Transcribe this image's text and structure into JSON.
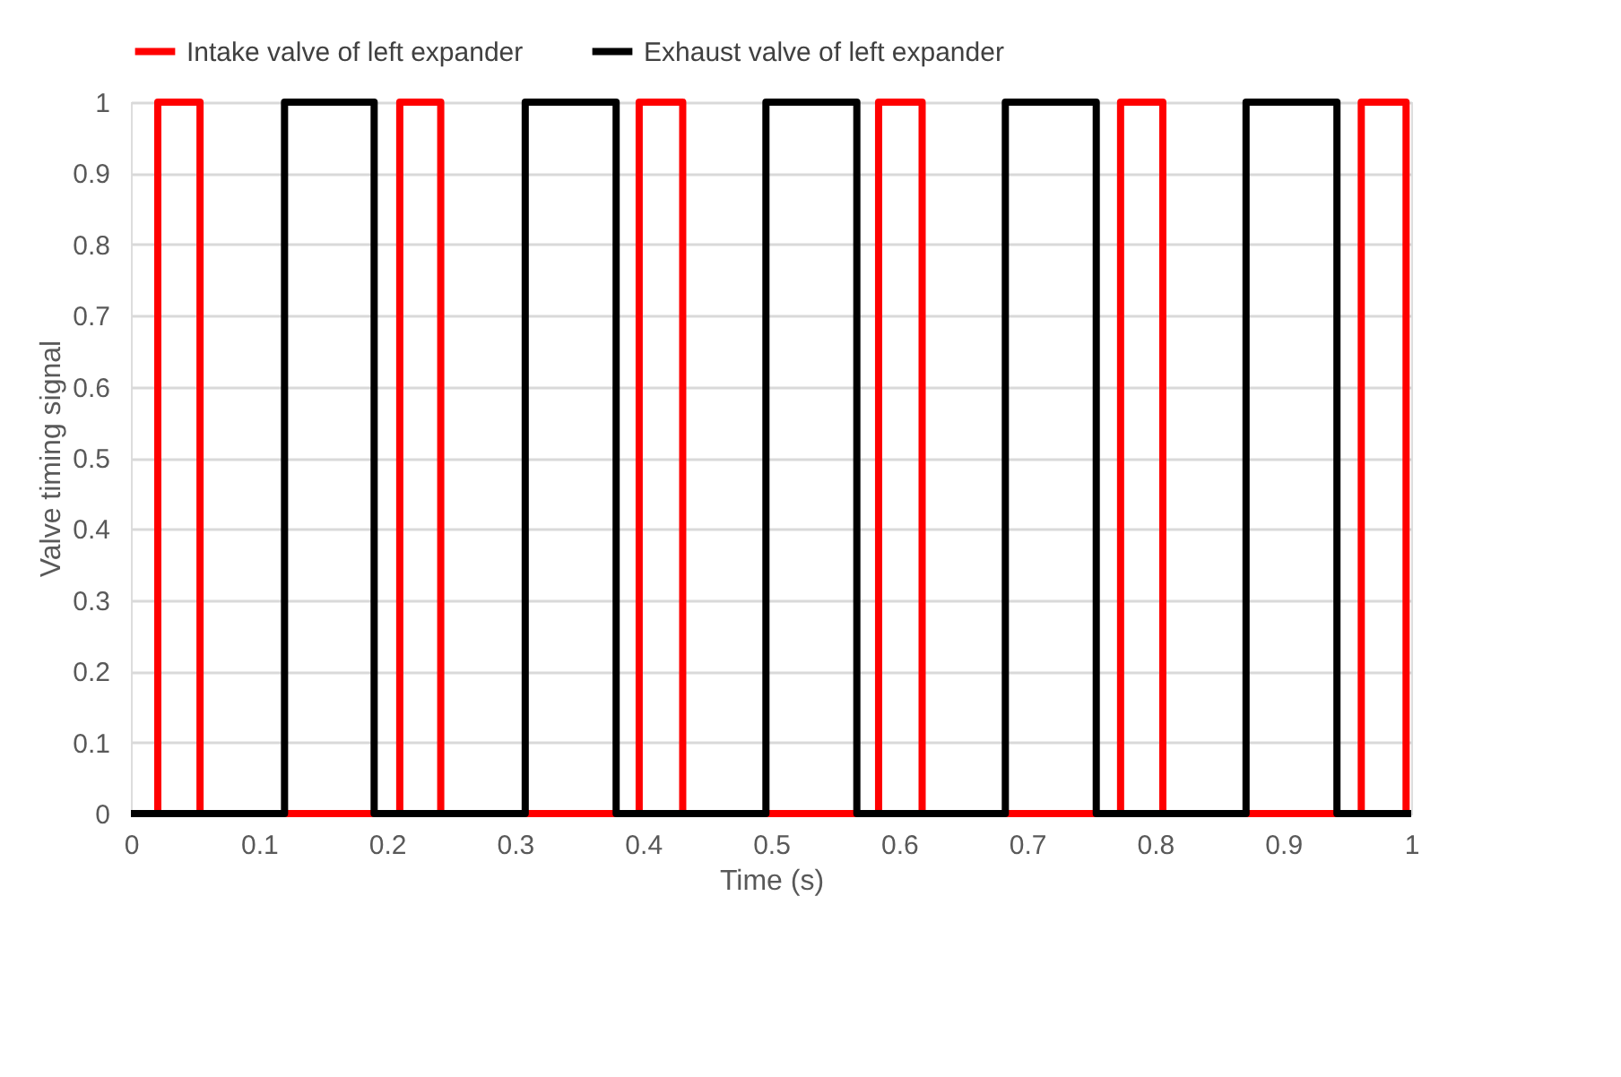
{
  "chart_data": {
    "type": "line",
    "xlabel": "Time (s)",
    "ylabel": "Valve timing signal",
    "xlim": [
      0,
      1
    ],
    "xticks": [
      0,
      0.1,
      0.2,
      0.3,
      0.4,
      0.5,
      0.6,
      0.7,
      0.8,
      0.9,
      1
    ],
    "ylim": [
      0,
      1
    ],
    "yticks": [
      0,
      0.1,
      0.2,
      0.3,
      0.4,
      0.5,
      0.6,
      0.7,
      0.8,
      0.9,
      1
    ],
    "grid": "y",
    "legend": "top",
    "line_style": "solid",
    "marker": "none",
    "series": [
      {
        "name": "Intake valve of left expander",
        "color": "#ff0000",
        "x": [
          0,
          0.021,
          0.021,
          0.054,
          0.054,
          0.21,
          0.21,
          0.242,
          0.242,
          0.397,
          0.397,
          0.431,
          0.431,
          0.584,
          0.584,
          0.618,
          0.618,
          0.773,
          0.773,
          0.806,
          0.806,
          0.961,
          0.961,
          0.996,
          0.996,
          1
        ],
        "values": [
          0,
          0,
          1,
          1,
          0,
          0,
          1,
          1,
          0,
          0,
          1,
          1,
          0,
          0,
          1,
          1,
          0,
          0,
          1,
          1,
          0,
          0,
          1,
          1,
          0,
          0
        ]
      },
      {
        "name": "Exhaust valve of left expander",
        "color": "#000000",
        "x": [
          0,
          0.12,
          0.12,
          0.19,
          0.19,
          0.308,
          0.308,
          0.379,
          0.379,
          0.496,
          0.496,
          0.567,
          0.567,
          0.683,
          0.683,
          0.754,
          0.754,
          0.871,
          0.871,
          0.942,
          0.942,
          1
        ],
        "values": [
          0,
          0,
          1,
          1,
          0,
          0,
          1,
          1,
          0,
          0,
          1,
          1,
          0,
          0,
          1,
          1,
          0,
          0,
          1,
          1,
          0,
          0
        ]
      }
    ]
  }
}
